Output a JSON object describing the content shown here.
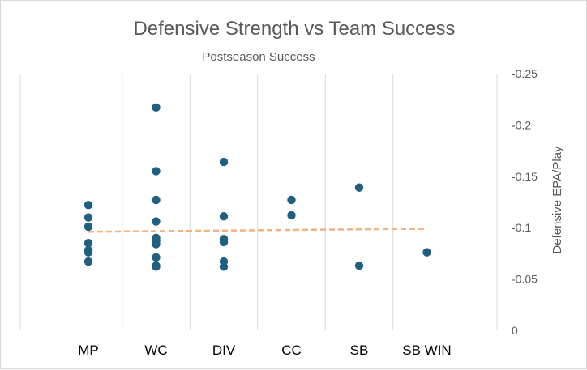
{
  "chart_data": {
    "type": "scatter",
    "title": "Defensive Strength vs Team Success",
    "subtitle": "Postseason Success",
    "xlabel": "",
    "ylabel": "Defensive EPA/Play",
    "categories": [
      "MP",
      "WC",
      "DIV",
      "CC",
      "SB",
      "SB WIN"
    ],
    "y_axis": {
      "position": "right",
      "reversed": true,
      "ylim": [
        0,
        -0.25
      ],
      "ticks": [
        0,
        -0.05,
        -0.1,
        -0.15,
        -0.2,
        -0.25
      ],
      "tick_labels": [
        "0",
        "-0.05",
        "-0.1",
        "-0.15",
        "-0.2",
        "-0.25"
      ],
      "grid": "vertical-lines-at-categories"
    },
    "series": [
      {
        "values": [
          {
            "x": "MP",
            "y": -0.122
          },
          {
            "x": "MP",
            "y": -0.11
          },
          {
            "x": "MP",
            "y": -0.101
          },
          {
            "x": "MP",
            "y": -0.085
          },
          {
            "x": "MP",
            "y": -0.078
          },
          {
            "x": "MP",
            "y": -0.076
          },
          {
            "x": "MP",
            "y": -0.067
          },
          {
            "x": "WC",
            "y": -0.217
          },
          {
            "x": "WC",
            "y": -0.155
          },
          {
            "x": "WC",
            "y": -0.127
          },
          {
            "x": "WC",
            "y": -0.106
          },
          {
            "x": "WC",
            "y": -0.09
          },
          {
            "x": "WC",
            "y": -0.087
          },
          {
            "x": "WC",
            "y": -0.084
          },
          {
            "x": "WC",
            "y": -0.071
          },
          {
            "x": "WC",
            "y": -0.063
          },
          {
            "x": "WC",
            "y": -0.062
          },
          {
            "x": "DIV",
            "y": -0.164
          },
          {
            "x": "DIV",
            "y": -0.111
          },
          {
            "x": "DIV",
            "y": -0.089
          },
          {
            "x": "DIV",
            "y": -0.086
          },
          {
            "x": "DIV",
            "y": -0.067
          },
          {
            "x": "DIV",
            "y": -0.062
          },
          {
            "x": "CC",
            "y": -0.127
          },
          {
            "x": "CC",
            "y": -0.112
          },
          {
            "x": "SB",
            "y": -0.139
          },
          {
            "x": "SB",
            "y": -0.063
          },
          {
            "x": "SB WIN",
            "y": -0.076
          }
        ],
        "color": "#1f5f7f"
      }
    ],
    "trendline": {
      "type": "linear",
      "style": "dashed",
      "color": "#f4b183",
      "start": {
        "x": "MP",
        "y": -0.096
      },
      "end": {
        "x": "SB WIN",
        "y": -0.099
      }
    }
  }
}
